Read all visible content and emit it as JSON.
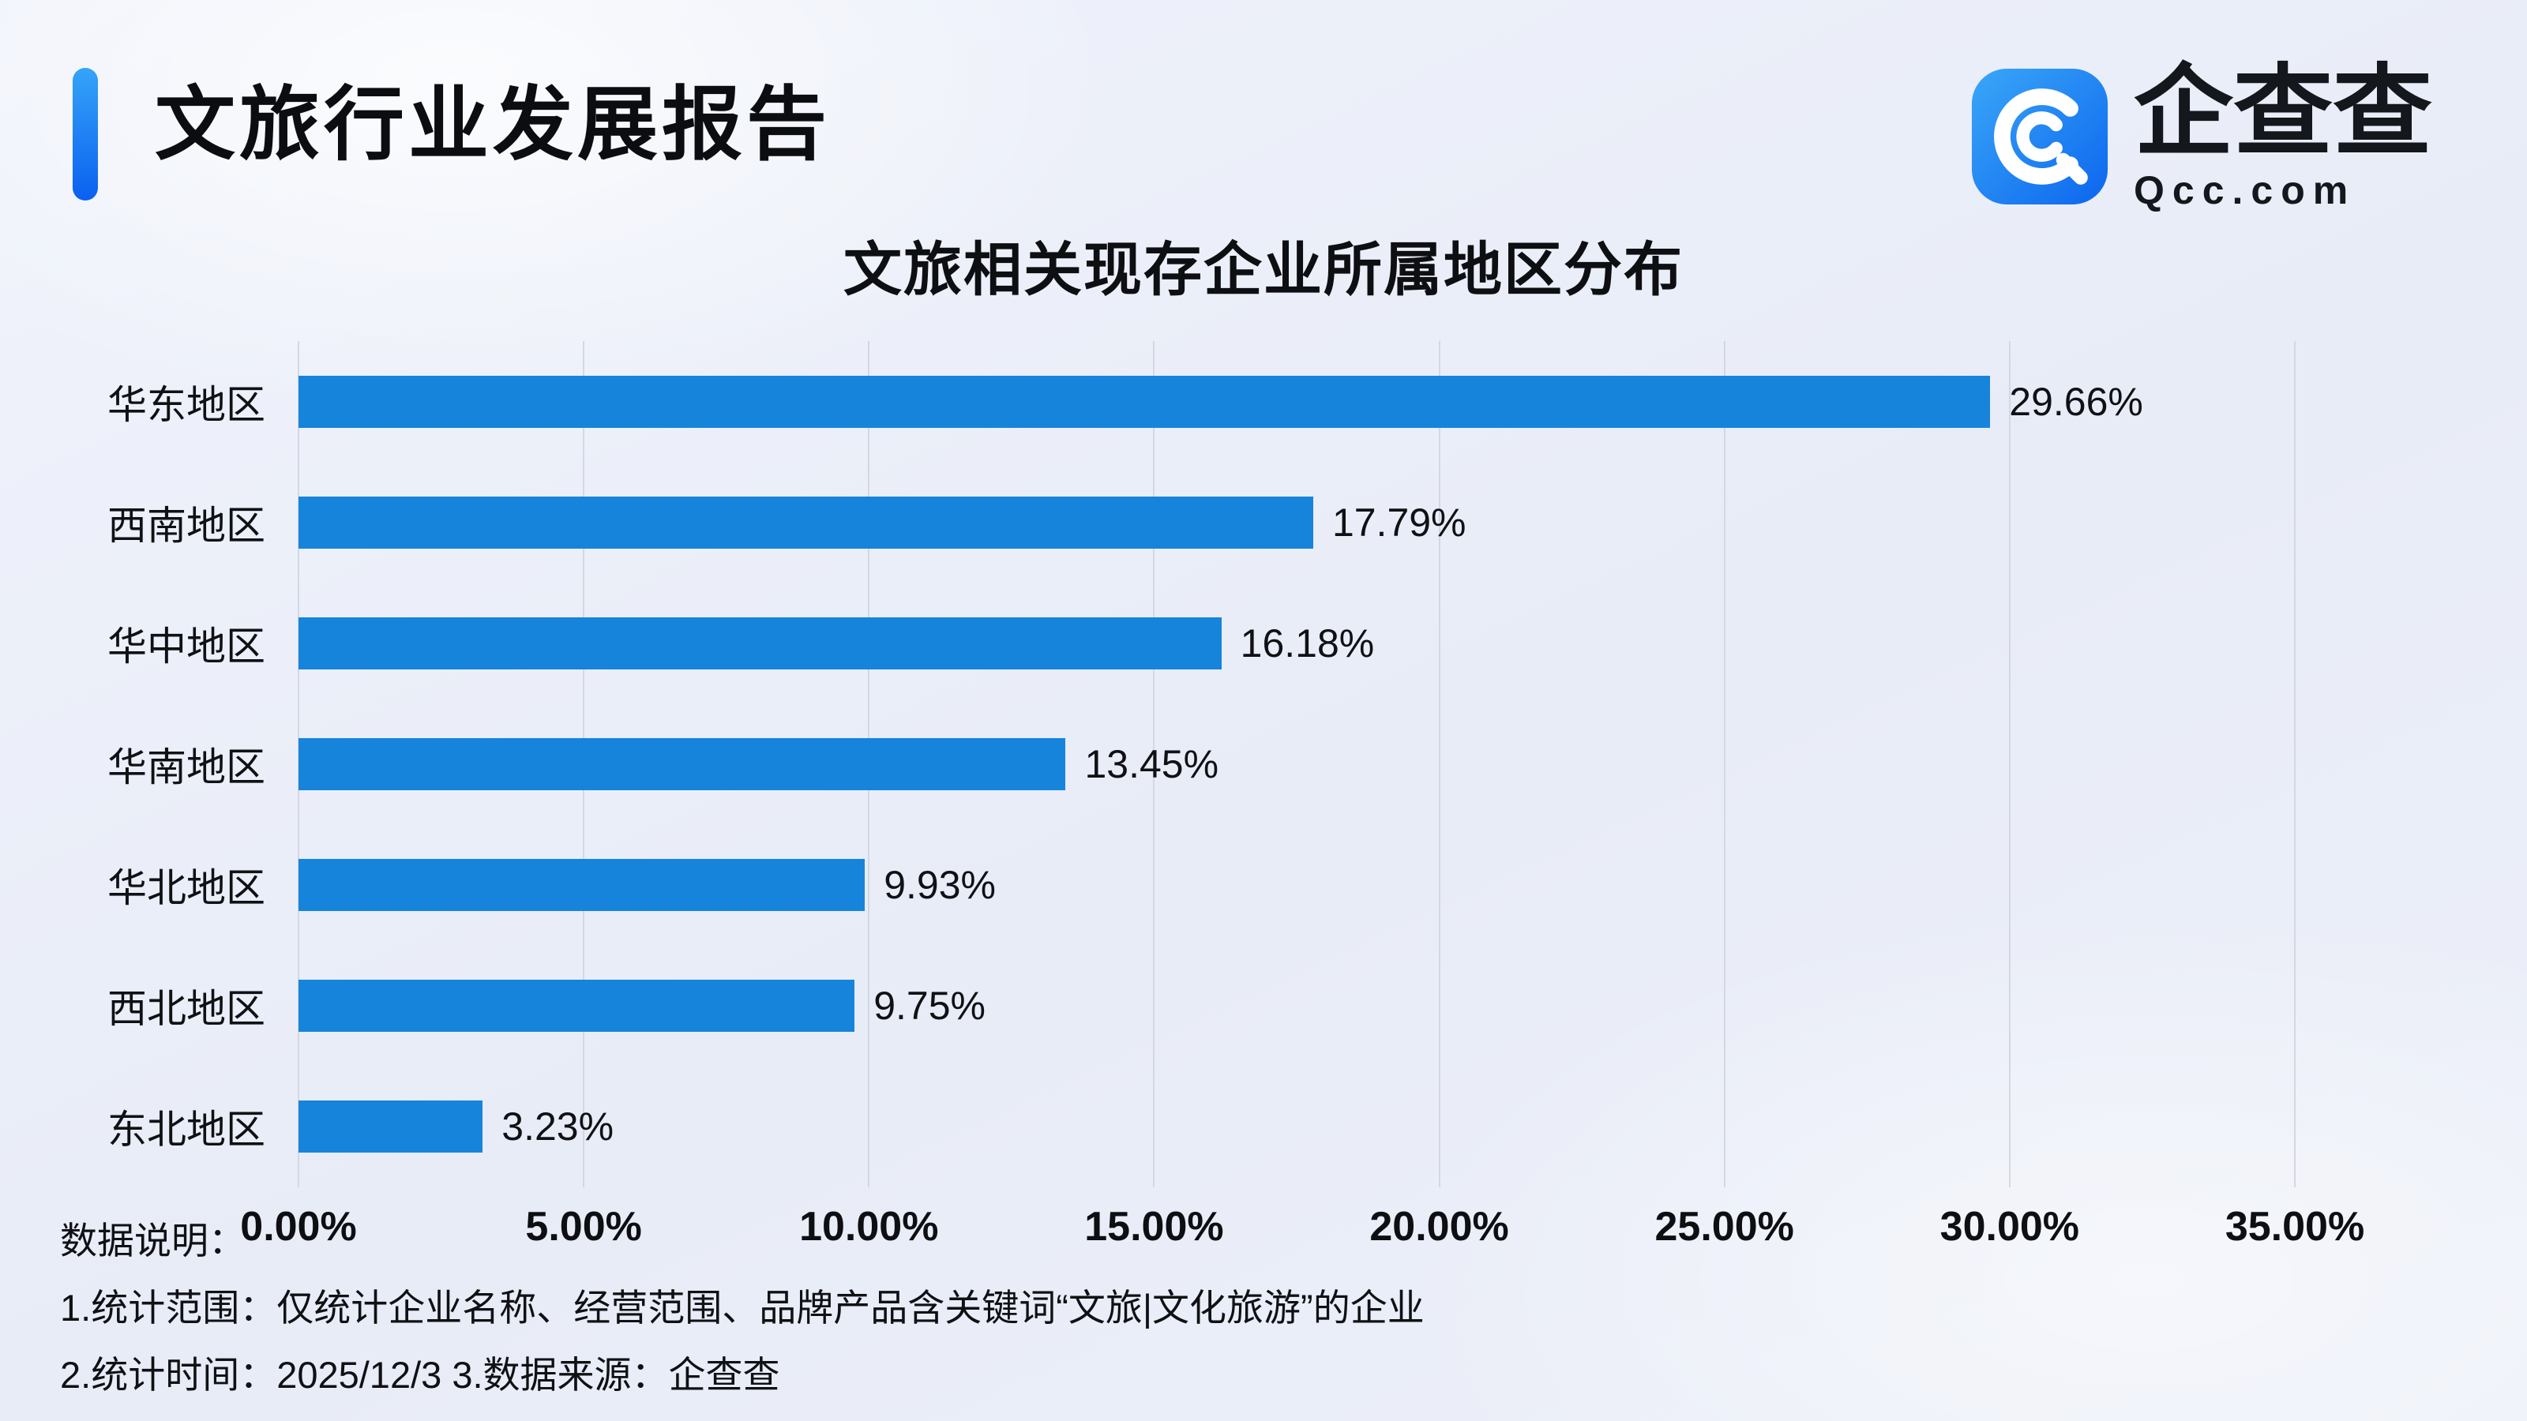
{
  "header": {
    "title": "文旅行业发展报告"
  },
  "logo": {
    "name": "企查查",
    "domain": "Qcc.com"
  },
  "chart_data": {
    "type": "bar",
    "orientation": "horizontal",
    "title": "文旅相关现存企业所属地区分布",
    "categories": [
      "华东地区",
      "西南地区",
      "华中地区",
      "华南地区",
      "华北地区",
      "西北地区",
      "东北地区"
    ],
    "values": [
      29.66,
      17.79,
      16.18,
      13.45,
      9.93,
      9.75,
      3.23
    ],
    "value_labels": [
      "29.66%",
      "17.79%",
      "16.18%",
      "13.45%",
      "9.93%",
      "9.75%",
      "3.23%"
    ],
    "x_ticks": [
      "0.00%",
      "5.00%",
      "10.00%",
      "15.00%",
      "20.00%",
      "25.00%",
      "30.00%",
      "35.00%"
    ],
    "xlim": [
      0,
      35
    ],
    "bar_color": "#1684db",
    "grid": true,
    "legend": "none"
  },
  "footer": {
    "heading": "数据说明：",
    "note1": "1.统计范围：仅统计企业名称、经营范围、品牌产品含关键词“文旅|文化旅游”的企业",
    "note2": "2.统计时间：2025/12/3  3.数据来源：企查查"
  }
}
